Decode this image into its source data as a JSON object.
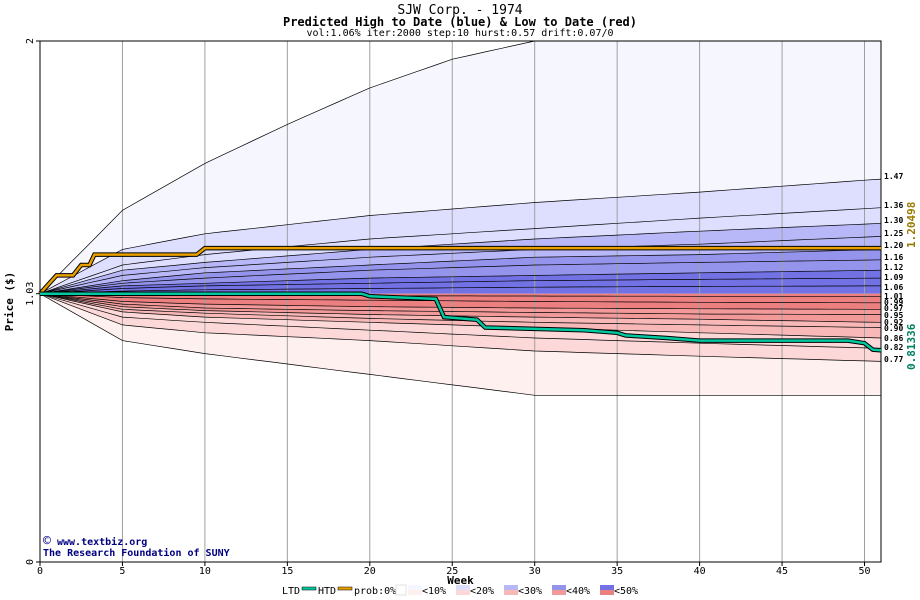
{
  "chart_data": {
    "type": "area",
    "title": "SJW Corp. - 1974",
    "subtitle": "Predicted High to Date (blue) &  Low to Date (red)",
    "params": "vol:1.06% iter:2000 step:10 hurst:0.57 drift:0.07/0",
    "xlabel": "Week",
    "ylabel": "Price ($)",
    "xlim": [
      0,
      51
    ],
    "ylim": [
      0,
      2
    ],
    "x_ticks": [
      0,
      5,
      10,
      15,
      20,
      25,
      30,
      35,
      40,
      45,
      50
    ],
    "y_ticks": [
      "0",
      "1.03",
      "2"
    ],
    "start_price": 1.03,
    "grid": true,
    "upper_bands": [
      {
        "weeks": [
          0,
          5,
          10,
          15,
          20,
          25,
          30,
          50
        ],
        "values": [
          1.03,
          1.35,
          1.53,
          1.68,
          1.82,
          1.93,
          2.0,
          2.0
        ]
      },
      {
        "weeks": [
          0,
          5,
          10,
          20,
          30,
          40,
          51
        ],
        "values": [
          1.03,
          1.2,
          1.26,
          1.33,
          1.38,
          1.42,
          1.47
        ]
      },
      {
        "weeks": [
          0,
          5,
          10,
          20,
          30,
          40,
          51
        ],
        "values": [
          1.03,
          1.14,
          1.18,
          1.24,
          1.28,
          1.32,
          1.36
        ]
      },
      {
        "weeks": [
          0,
          5,
          10,
          20,
          30,
          40,
          51
        ],
        "values": [
          1.03,
          1.12,
          1.15,
          1.2,
          1.24,
          1.27,
          1.3
        ]
      },
      {
        "weeks": [
          0,
          5,
          10,
          20,
          30,
          40,
          51
        ],
        "values": [
          1.03,
          1.1,
          1.13,
          1.17,
          1.2,
          1.22,
          1.25
        ]
      },
      {
        "weeks": [
          0,
          5,
          10,
          20,
          30,
          40,
          51
        ],
        "values": [
          1.03,
          1.08,
          1.11,
          1.14,
          1.17,
          1.18,
          1.2
        ]
      },
      {
        "weeks": [
          0,
          5,
          10,
          20,
          30,
          40,
          51
        ],
        "values": [
          1.03,
          1.07,
          1.09,
          1.12,
          1.14,
          1.15,
          1.16
        ]
      },
      {
        "weeks": [
          0,
          5,
          10,
          20,
          30,
          40,
          51
        ],
        "values": [
          1.03,
          1.06,
          1.07,
          1.09,
          1.1,
          1.11,
          1.12
        ]
      },
      {
        "weeks": [
          0,
          5,
          10,
          20,
          30,
          40,
          51
        ],
        "values": [
          1.03,
          1.05,
          1.06,
          1.07,
          1.08,
          1.085,
          1.09
        ]
      },
      {
        "weeks": [
          0,
          5,
          10,
          20,
          30,
          40,
          51
        ],
        "values": [
          1.03,
          1.04,
          1.045,
          1.05,
          1.055,
          1.058,
          1.06
        ]
      }
    ],
    "lower_bands": [
      {
        "weeks": [
          0,
          5,
          10,
          20,
          30,
          40,
          51
        ],
        "values": [
          1.03,
          1.025,
          1.024,
          1.022,
          1.021,
          1.02,
          1.02
        ]
      },
      {
        "weeks": [
          0,
          5,
          10,
          20,
          30,
          40,
          51
        ],
        "values": [
          1.03,
          1.015,
          1.01,
          1.005,
          1.0,
          0.997,
          0.995
        ]
      },
      {
        "weeks": [
          0,
          5,
          10,
          20,
          30,
          40,
          51
        ],
        "values": [
          1.03,
          1.0,
          0.99,
          0.98,
          0.975,
          0.972,
          0.97
        ]
      },
      {
        "weeks": [
          0,
          5,
          10,
          20,
          30,
          40,
          51
        ],
        "values": [
          1.03,
          0.99,
          0.975,
          0.965,
          0.958,
          0.952,
          0.95
        ]
      },
      {
        "weeks": [
          0,
          5,
          10,
          20,
          30,
          40,
          51
        ],
        "values": [
          1.03,
          0.98,
          0.965,
          0.95,
          0.94,
          0.932,
          0.92
        ]
      },
      {
        "weeks": [
          0,
          5,
          10,
          20,
          30,
          40,
          51
        ],
        "values": [
          1.03,
          0.97,
          0.955,
          0.935,
          0.92,
          0.91,
          0.9
        ]
      },
      {
        "weeks": [
          0,
          5,
          10,
          20,
          30,
          40,
          51
        ],
        "values": [
          1.03,
          0.96,
          0.94,
          0.92,
          0.9,
          0.88,
          0.86
        ]
      },
      {
        "weeks": [
          0,
          5,
          10,
          20,
          30,
          40,
          51
        ],
        "values": [
          1.03,
          0.94,
          0.92,
          0.89,
          0.86,
          0.84,
          0.82
        ]
      },
      {
        "weeks": [
          0,
          5,
          10,
          20,
          30,
          40,
          51
        ],
        "values": [
          1.03,
          0.91,
          0.88,
          0.85,
          0.81,
          0.79,
          0.77
        ]
      },
      {
        "weeks": [
          0,
          5,
          10,
          15,
          20,
          25,
          30,
          40,
          51
        ],
        "values": [
          1.03,
          0.85,
          0.8,
          0.76,
          0.72,
          0.68,
          0.64,
          0.64,
          0.64
        ]
      }
    ],
    "level_labels": [
      "1.47",
      "1.36",
      "1.30",
      "1.25",
      "1.20",
      "1.16",
      "1.12",
      "1.09",
      "1.06",
      "1.01",
      "0.99",
      "0.97",
      "0.95",
      "0.92",
      "0.90",
      "0.86",
      "0.82",
      "0.77"
    ],
    "series": [
      {
        "name": "HTD",
        "color": "#e8a000",
        "weeks": [
          0,
          1,
          2,
          2.5,
          3,
          3.3,
          9.5,
          10,
          51
        ],
        "values": [
          1.03,
          1.1,
          1.1,
          1.14,
          1.14,
          1.18,
          1.18,
          1.205,
          1.205
        ],
        "final_label": "1.20498"
      },
      {
        "name": "LTD",
        "color": "#00c8a0",
        "weeks": [
          0,
          19.5,
          20,
          24,
          24.5,
          26.5,
          27,
          33,
          35,
          35.5,
          38,
          40,
          49,
          50,
          50.5,
          51
        ],
        "values": [
          1.03,
          1.03,
          1.02,
          1.01,
          0.94,
          0.93,
          0.9,
          0.89,
          0.88,
          0.87,
          0.86,
          0.85,
          0.85,
          0.84,
          0.815,
          0.813
        ],
        "final_label": "0.81336"
      }
    ],
    "legend": {
      "placement": "bottom",
      "ltd": "LTD",
      "htd": "HTD",
      "prob": "prob:0%",
      "buckets": [
        "<10%",
        "<20%",
        "<30%",
        "<40%",
        "<50%"
      ],
      "upper_colors": [
        "#f6f6ff",
        "#dedeff",
        "#b8b8f8",
        "#9494ec",
        "#7272e4"
      ],
      "lower_colors": [
        "#fff0f0",
        "#fcd8d8",
        "#f8b8b8",
        "#f29a9a",
        "#ec8080"
      ]
    },
    "colors": {
      "background": "#ffffff",
      "axis": "#000000",
      "grid": "#a0a0a0",
      "credit": "#000080",
      "htd_label": "#9a7a00",
      "ltd_label": "#008060"
    }
  },
  "credits": {
    "line1": "www.textbiz.org",
    "line2": "The Research Foundation of SUNY",
    "symbol": "©"
  }
}
